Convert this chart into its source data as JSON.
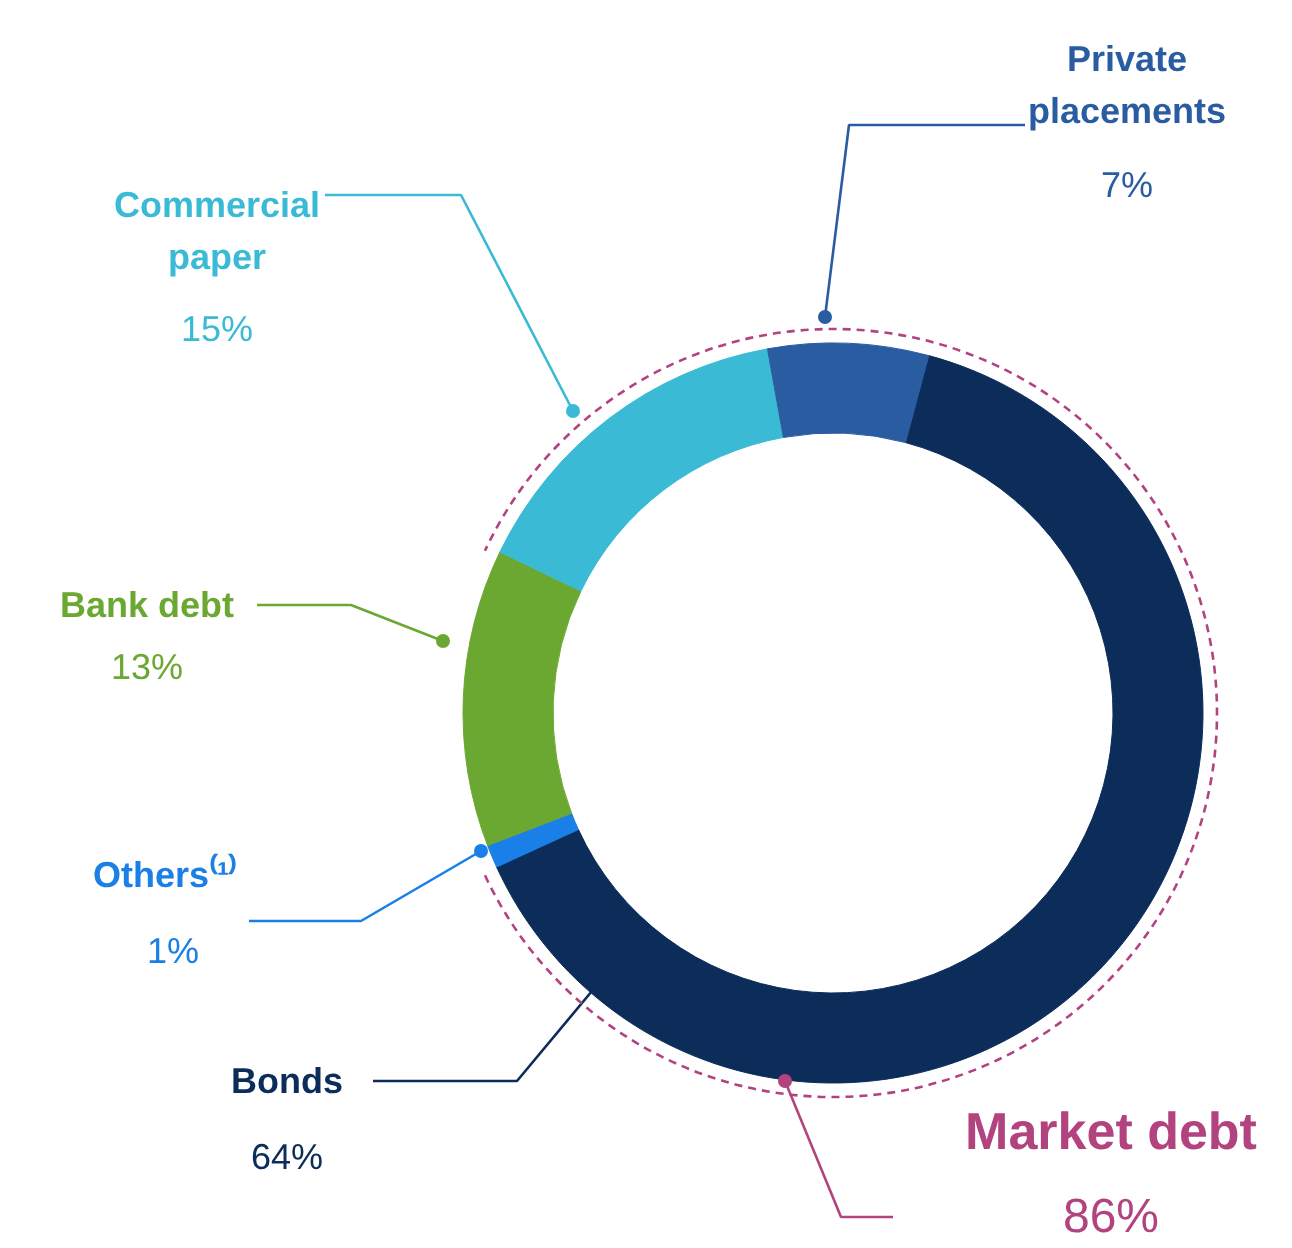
{
  "chart_data": {
    "type": "donut",
    "categories": [
      "Bonds",
      "Others⁽¹⁾",
      "Bank debt",
      "Commercial paper",
      "Private placements"
    ],
    "values": [
      64,
      1,
      13,
      15,
      7
    ],
    "colors": [
      "#0c2c5a",
      "#1a7fe6",
      "#6aa832",
      "#3bbad6",
      "#2a5ca2"
    ],
    "value_labels": [
      "64%",
      "1%",
      "13%",
      "15%",
      "7%"
    ],
    "annotations": [
      "Market debt",
      "86%"
    ]
  }
}
